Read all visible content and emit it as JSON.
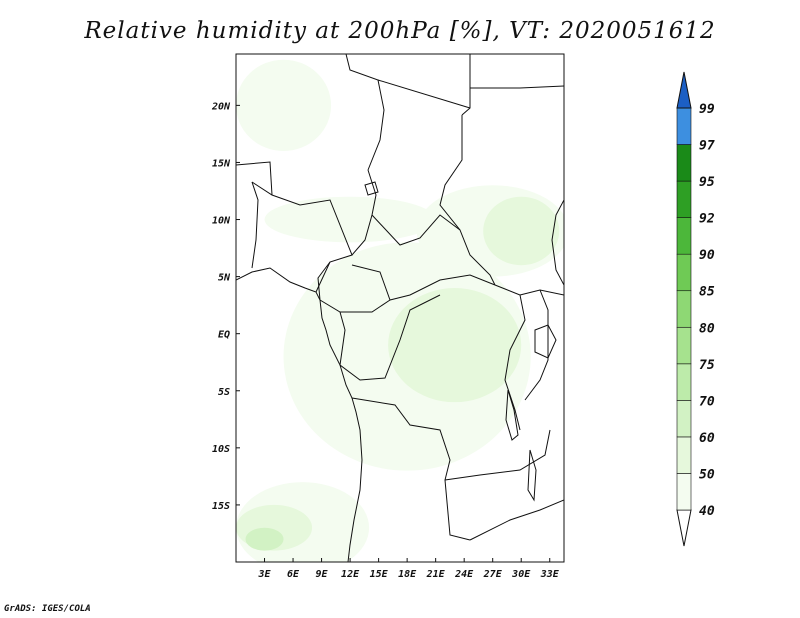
{
  "title": "Relative humidity at 200hPa [%], VT: 2020051612",
  "credit": "GrADS: IGES/COLA",
  "map": {
    "lon_range": [
      0,
      34.5
    ],
    "lat_range": [
      -20,
      24.5
    ],
    "x_ticks": [
      "3E",
      "6E",
      "9E",
      "12E",
      "15E",
      "18E",
      "21E",
      "24E",
      "27E",
      "30E",
      "33E"
    ],
    "x_tick_values": [
      3,
      6,
      9,
      12,
      15,
      18,
      21,
      24,
      27,
      30,
      33
    ],
    "y_ticks": [
      "20N",
      "15N",
      "10N",
      "5N",
      "EQ",
      "5S",
      "10S",
      "15S"
    ],
    "y_tick_values": [
      20,
      15,
      10,
      5,
      0,
      -5,
      -10,
      -15
    ]
  },
  "colorbar": {
    "levels": [
      "40",
      "50",
      "60",
      "70",
      "75",
      "80",
      "85",
      "90",
      "92",
      "95",
      "97",
      "99"
    ],
    "colors": [
      "#f4fcf0",
      "#e6f8dc",
      "#d2f2c4",
      "#bdebaa",
      "#a6e28e",
      "#8ed874",
      "#6fca55",
      "#4cb73a",
      "#2e9f24",
      "#1a8a18",
      "#3d8fe0",
      "#2a72d6",
      "#1c5fc4"
    ],
    "below_color": "#ffffff"
  },
  "humidity_regions": [
    {
      "level": "40",
      "lon": 18,
      "lat": -2,
      "rx": 13,
      "ry": 10
    },
    {
      "level": "40",
      "lon": 27,
      "lat": 9,
      "rx": 8,
      "ry": 4
    },
    {
      "level": "40",
      "lon": 5,
      "lat": 20,
      "rx": 5,
      "ry": 4
    },
    {
      "level": "40",
      "lon": 7,
      "lat": -17,
      "rx": 7,
      "ry": 4
    },
    {
      "level": "40",
      "lon": 12,
      "lat": 10,
      "rx": 9,
      "ry": 2
    },
    {
      "level": "50",
      "lon": 23,
      "lat": -1,
      "rx": 7,
      "ry": 5
    },
    {
      "level": "50",
      "lon": 30,
      "lat": 9,
      "rx": 4,
      "ry": 3
    },
    {
      "level": "50",
      "lon": 4,
      "lat": -17,
      "rx": 4,
      "ry": 2
    },
    {
      "level": "60",
      "lon": 3,
      "lat": -18,
      "rx": 2,
      "ry": 1
    }
  ]
}
